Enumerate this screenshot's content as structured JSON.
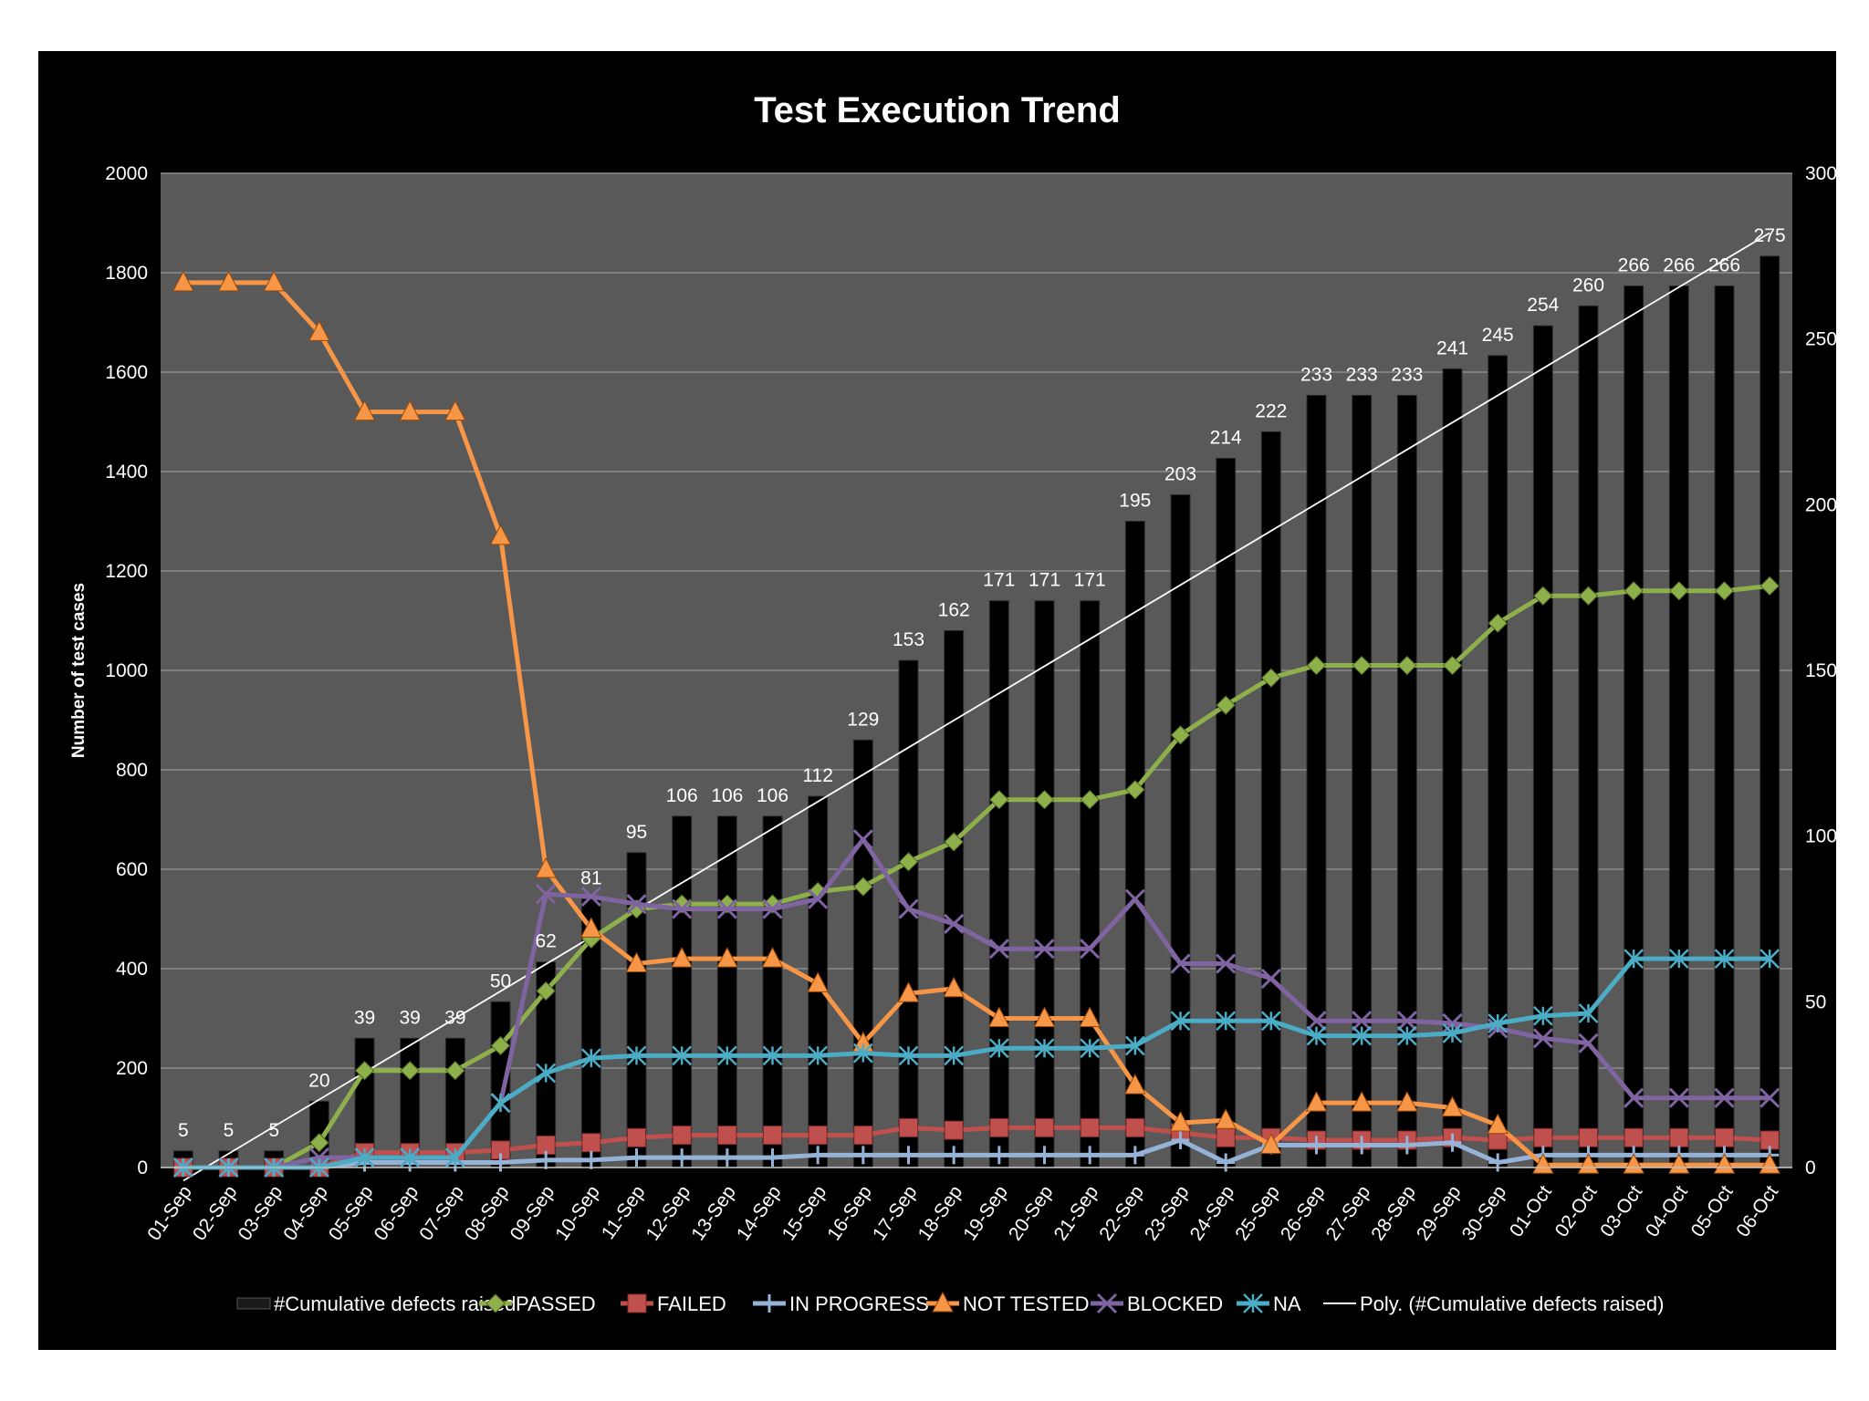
{
  "chart_data": {
    "type": "bar+line",
    "title": "Test Execution Trend",
    "ylabel": "Number of test cases",
    "ylim": [
      0,
      2000
    ],
    "y_ticks": [
      "0",
      "200",
      "400",
      "600",
      "800",
      "1000",
      "1200",
      "1400",
      "1600",
      "1800",
      "2000"
    ],
    "y2lim": [
      0,
      300
    ],
    "y2_ticks": [
      "0",
      "50",
      "100",
      "150",
      "200",
      "250",
      "300"
    ],
    "categories": [
      "01-Sep",
      "02-Sep",
      "03-Sep",
      "04-Sep",
      "05-Sep",
      "06-Sep",
      "07-Sep",
      "08-Sep",
      "09-Sep",
      "10-Sep",
      "11-Sep",
      "12-Sep",
      "13-Sep",
      "14-Sep",
      "15-Sep",
      "16-Sep",
      "17-Sep",
      "18-Sep",
      "19-Sep",
      "20-Sep",
      "21-Sep",
      "22-Sep",
      "23-Sep",
      "24-Sep",
      "25-Sep",
      "26-Sep",
      "27-Sep",
      "28-Sep",
      "29-Sep",
      "30-Sep",
      "01-Oct",
      "02-Oct",
      "03-Oct",
      "04-Oct",
      "05-Oct",
      "06-Oct"
    ],
    "bars": {
      "name": "#Cumulative defects raised",
      "axis": "secondary",
      "color": "#000000",
      "values": [
        5,
        5,
        5,
        20,
        39,
        39,
        39,
        50,
        62,
        81,
        95,
        106,
        106,
        106,
        112,
        129,
        153,
        162,
        171,
        171,
        171,
        195,
        203,
        214,
        222,
        233,
        233,
        233,
        241,
        245,
        254,
        260,
        266,
        266,
        266,
        275
      ],
      "labels": [
        "5",
        "5",
        "5",
        "20",
        "39",
        "39",
        "39",
        "50",
        "62",
        "81",
        "95",
        "106",
        "106",
        "106",
        "112",
        "129",
        "153",
        "162",
        "171",
        "171",
        "171",
        "195",
        "203",
        "214",
        "222",
        "233",
        "233",
        "233",
        "241",
        "245",
        "254",
        "260",
        "266",
        "266",
        "266",
        "275"
      ]
    },
    "series": [
      {
        "name": "PASSED",
        "color": "#8db04a",
        "marker": "diamond",
        "values": [
          0,
          0,
          0,
          50,
          195,
          195,
          195,
          245,
          355,
          460,
          520,
          530,
          530,
          530,
          555,
          565,
          615,
          655,
          740,
          740,
          740,
          760,
          870,
          930,
          985,
          1010,
          1010,
          1010,
          1010,
          1095,
          1150,
          1150,
          1160,
          1160,
          1160,
          1170
        ]
      },
      {
        "name": "FAILED",
        "color": "#c0504d",
        "marker": "square",
        "values": [
          0,
          0,
          0,
          0,
          30,
          30,
          30,
          35,
          45,
          50,
          60,
          65,
          65,
          65,
          65,
          65,
          80,
          75,
          80,
          80,
          80,
          80,
          70,
          60,
          60,
          55,
          55,
          55,
          60,
          55,
          60,
          60,
          60,
          60,
          60,
          55
        ]
      },
      {
        "name": "IN PROGRESS",
        "color": "#95b3d7",
        "marker": "plus",
        "values": [
          0,
          0,
          0,
          0,
          10,
          10,
          10,
          10,
          15,
          15,
          20,
          20,
          20,
          20,
          25,
          25,
          25,
          25,
          25,
          25,
          25,
          25,
          55,
          10,
          45,
          45,
          45,
          45,
          50,
          10,
          25,
          25,
          25,
          25,
          25,
          25
        ]
      },
      {
        "name": "NOT TESTED",
        "color": "#f79646",
        "marker": "triangle",
        "values": [
          1780,
          1780,
          1780,
          1680,
          1520,
          1520,
          1520,
          1270,
          600,
          480,
          410,
          420,
          420,
          420,
          370,
          250,
          350,
          360,
          300,
          300,
          300,
          165,
          90,
          95,
          45,
          130,
          130,
          130,
          120,
          85,
          5,
          5,
          5,
          5,
          5,
          5
        ]
      },
      {
        "name": "BLOCKED",
        "color": "#8064a2",
        "marker": "x",
        "values": [
          0,
          0,
          0,
          20,
          20,
          20,
          20,
          130,
          550,
          545,
          530,
          520,
          520,
          520,
          540,
          660,
          520,
          490,
          440,
          440,
          440,
          540,
          410,
          410,
          380,
          295,
          295,
          295,
          290,
          280,
          260,
          250,
          140,
          140,
          140,
          140
        ]
      },
      {
        "name": "NA",
        "color": "#4bacc6",
        "marker": "star",
        "values": [
          0,
          0,
          0,
          0,
          20,
          20,
          20,
          130,
          190,
          220,
          225,
          225,
          225,
          225,
          225,
          230,
          225,
          225,
          240,
          240,
          240,
          245,
          295,
          295,
          295,
          265,
          265,
          265,
          270,
          290,
          305,
          310,
          420,
          420,
          420,
          420
        ]
      }
    ],
    "trendline": {
      "name": "Poly. (#Cumulative defects raised)",
      "color": "#ffffff",
      "type": "polynomial",
      "start": [
        1,
        -4
      ],
      "end": [
        36,
        282
      ]
    },
    "legend_position": "bottom",
    "grid": true
  }
}
